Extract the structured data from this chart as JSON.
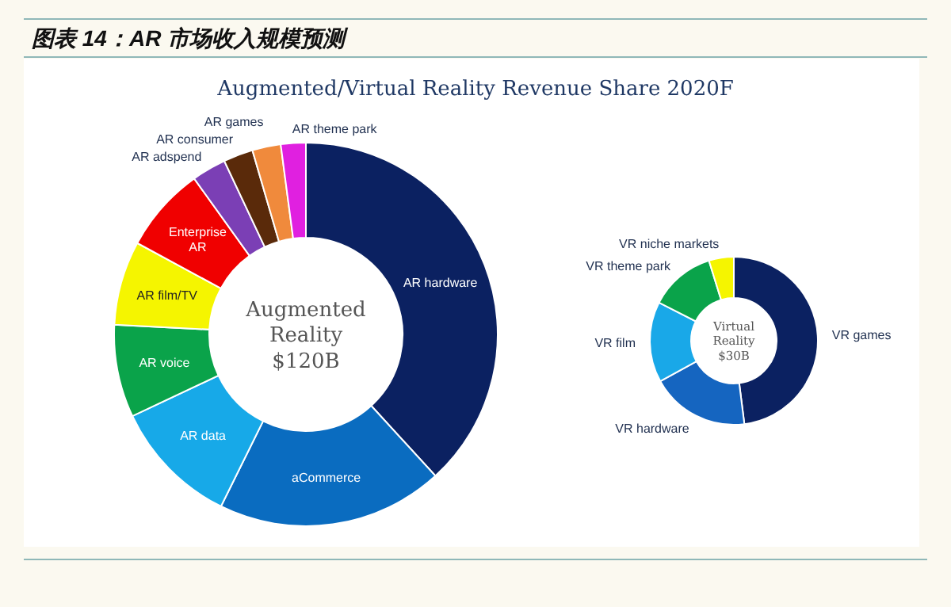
{
  "chart_data": [
    {
      "type": "donut",
      "title": "图表 14：AR 市场收入规模预测",
      "subtitle": "Augmented/Virtual Reality Revenue Share 2020F",
      "annotations": [
        "Augmented Reality $120B"
      ],
      "categories": [
        "AR hardware",
        "aCommerce",
        "AR data",
        "AR voice",
        "AR film/TV",
        "Enterprise AR",
        "AR adspend",
        "AR consumer",
        "AR games",
        "AR theme park"
      ],
      "values": [
        38.2,
        19.1,
        10.7,
        7.8,
        7.1,
        7.2,
        2.9,
        2.5,
        2.4,
        2.1
      ],
      "colors": [
        "#0b2161",
        "#0a6cc0",
        "#17a9e8",
        "#0aa34a",
        "#f5f500",
        "#f00000",
        "#7b3fb5",
        "#5a2a0a",
        "#f08a3c",
        "#e020e0"
      ]
    },
    {
      "type": "donut",
      "annotations": [
        "Virtual Reality $30B"
      ],
      "categories": [
        "VR games",
        "VR hardware",
        "VR film",
        "VR theme park",
        "VR niche markets"
      ],
      "values": [
        48,
        19,
        15.5,
        12.7,
        4.8
      ],
      "colors": [
        "#0b2161",
        "#1565c0",
        "#19a8e8",
        "#0aa34a",
        "#f5f500"
      ]
    }
  ]
}
